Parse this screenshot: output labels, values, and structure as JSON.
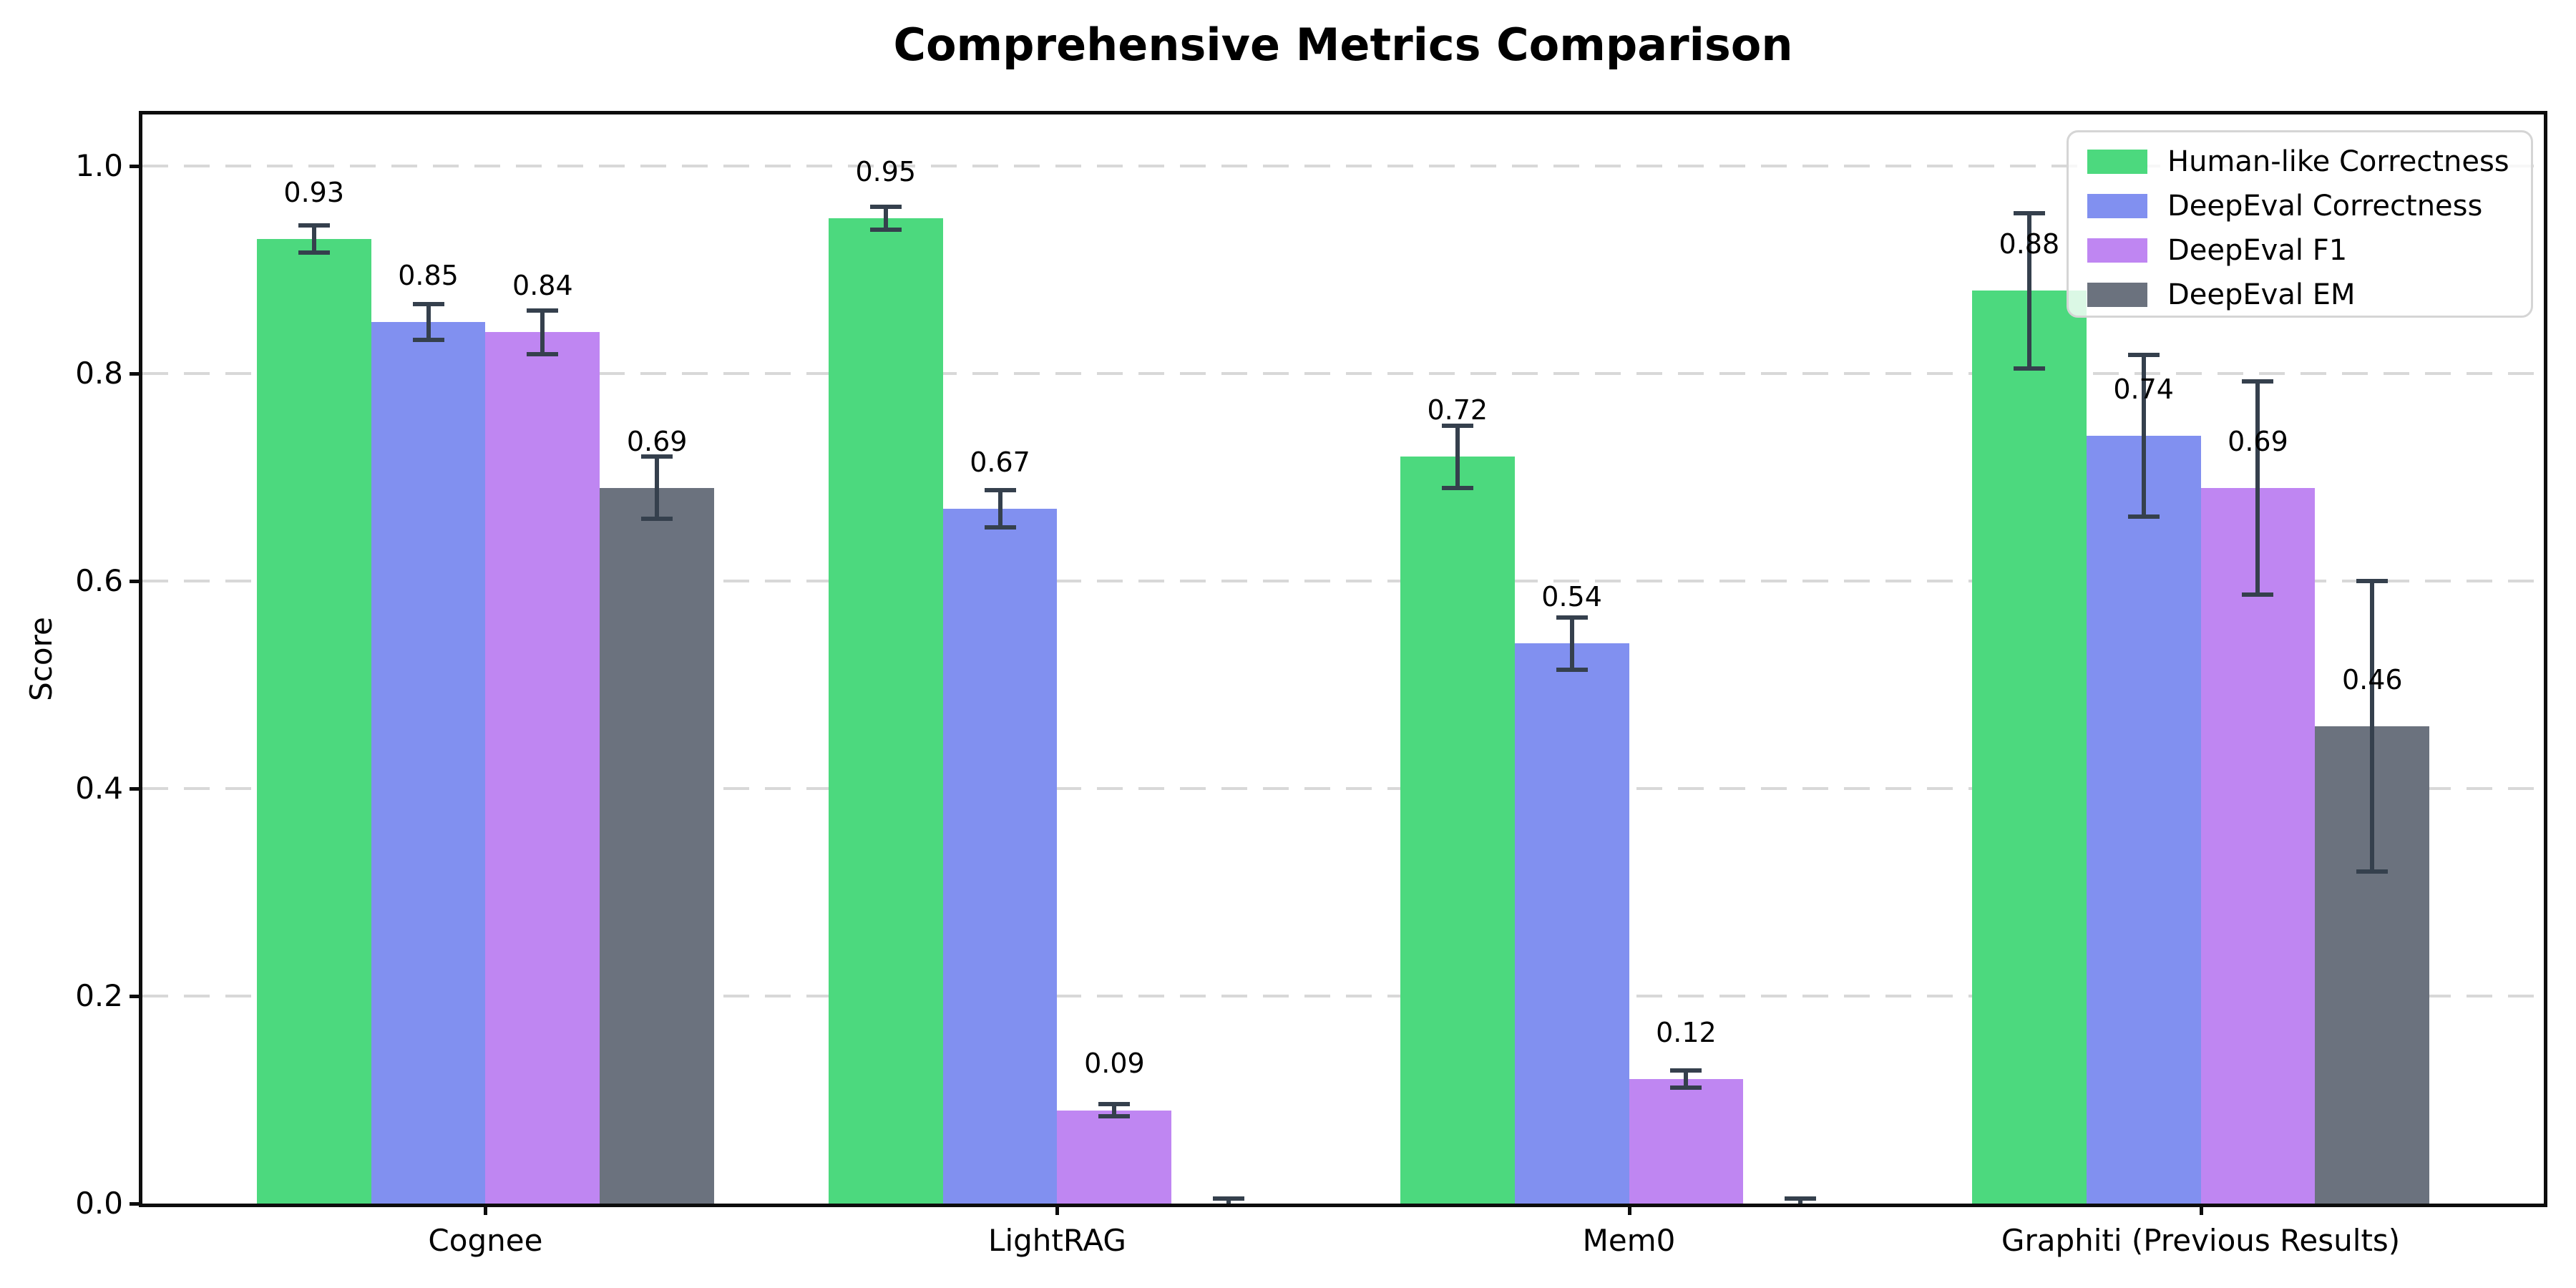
{
  "title": "Comprehensive Metrics Comparison",
  "y_axis_label": "Score",
  "chart_data": {
    "type": "bar",
    "title": "Comprehensive Metrics Comparison",
    "xlabel": "",
    "ylabel": "Score",
    "categories": [
      "Cognee",
      "LightRAG",
      "Mem0",
      "Graphiti (Previous Results)"
    ],
    "y_ticks": [
      "0.0",
      "0.2",
      "0.4",
      "0.6",
      "0.8",
      "1.0"
    ],
    "ylim": [
      0,
      1.05
    ],
    "grid": "horizontal-dashed",
    "legend_position": "upper-right",
    "series": [
      {
        "name": "Human-like Correctness",
        "color": "#4cd97e",
        "values": [
          0.93,
          0.95,
          0.72,
          0.88
        ],
        "errors": [
          0.013,
          0.011,
          0.03,
          0.075
        ],
        "bar_labels": [
          "0.93",
          "0.95",
          "0.72",
          "0.88"
        ]
      },
      {
        "name": "DeepEval Correctness",
        "color": "#8190f0",
        "values": [
          0.85,
          0.67,
          0.54,
          0.74
        ],
        "errors": [
          0.017,
          0.018,
          0.025,
          0.078
        ],
        "bar_labels": [
          "0.85",
          "0.67",
          "0.54",
          "0.74"
        ]
      },
      {
        "name": "DeepEval F1",
        "color": "#bf86f2",
        "values": [
          0.84,
          0.09,
          0.12,
          0.69
        ],
        "errors": [
          0.021,
          0.006,
          0.008,
          0.103
        ],
        "bar_labels": [
          "0.84",
          "0.09",
          "0.12",
          "0.69"
        ]
      },
      {
        "name": "DeepEval EM",
        "color": "#6b727e",
        "values": [
          0.69,
          0.0,
          0.0,
          0.46
        ],
        "errors": [
          0.03,
          0.005,
          0.005,
          0.14
        ],
        "bar_labels": [
          "0.69",
          "",
          "",
          "0.46"
        ]
      }
    ],
    "style": {
      "error_bar_color": "#35404d",
      "grid_color": "#d8d8d8",
      "axis_color": "#111111",
      "background": "#ffffff"
    }
  }
}
